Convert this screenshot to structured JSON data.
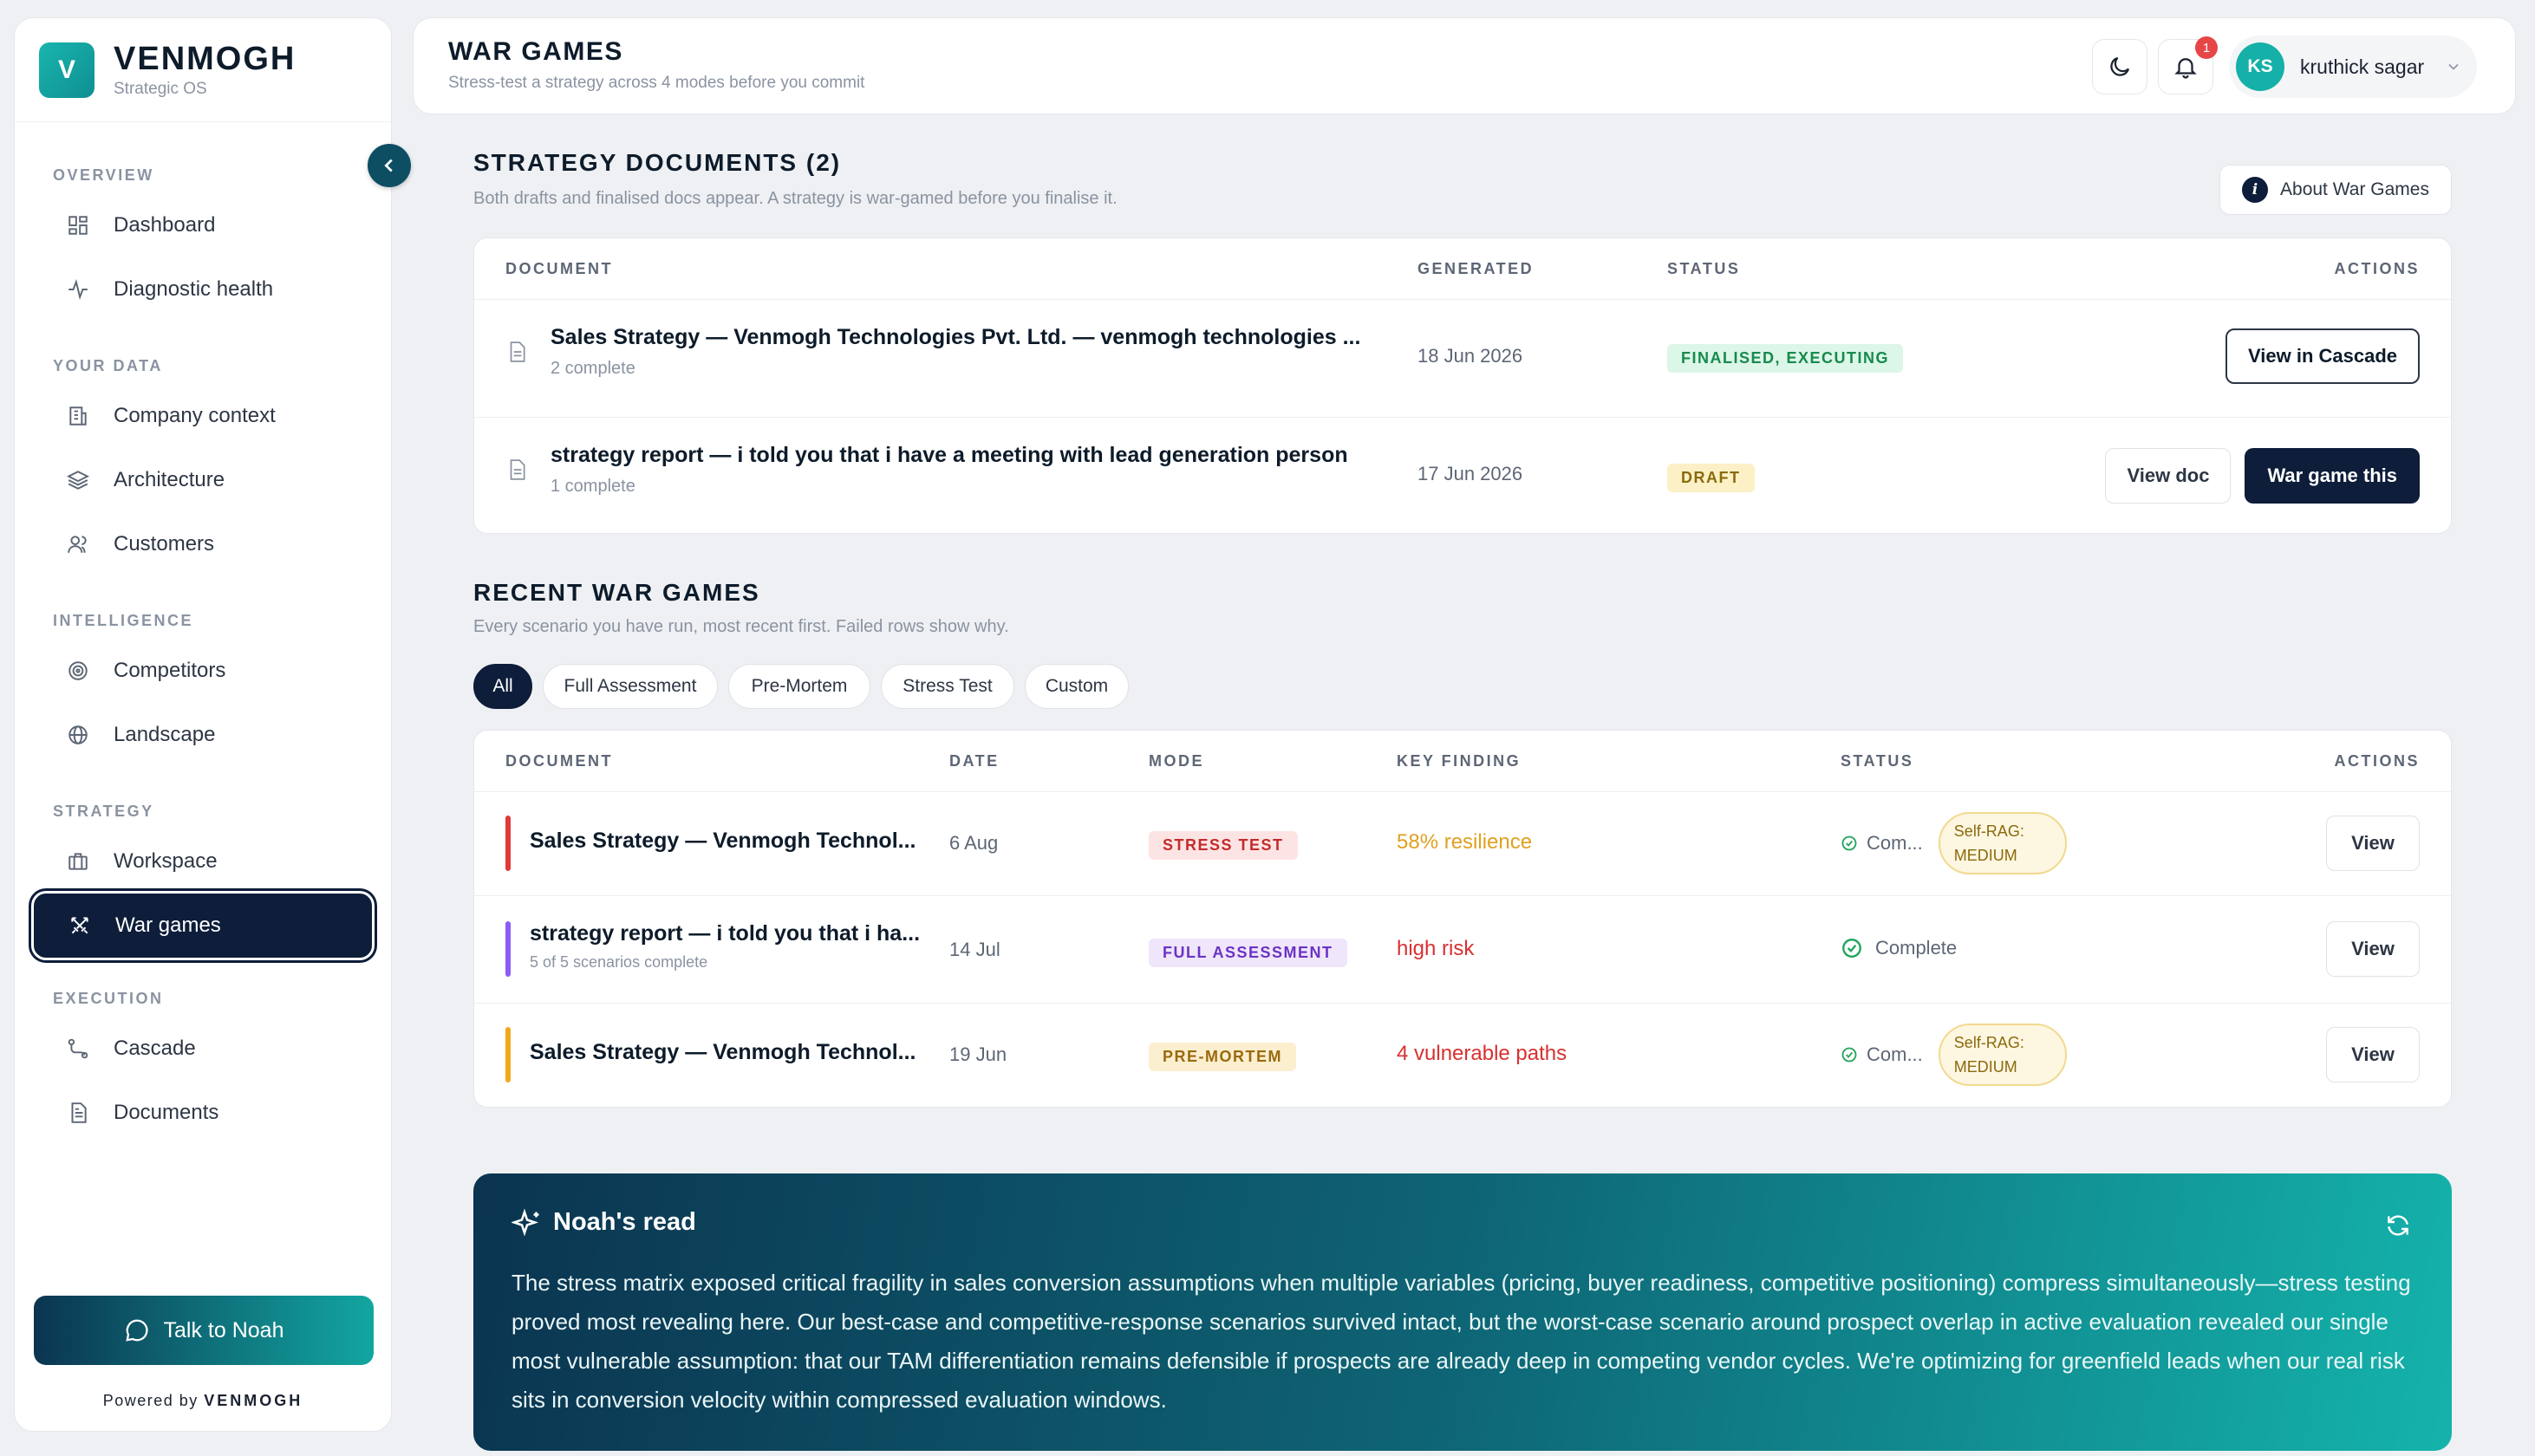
{
  "brand": {
    "logo_letter": "V",
    "name": "VENMOGH",
    "subtitle": "Strategic OS"
  },
  "sidebar": {
    "sections": {
      "overview": "OVERVIEW",
      "your_data": "YOUR DATA",
      "intelligence": "INTELLIGENCE",
      "strategy": "STRATEGY",
      "execution": "EXECUTION"
    },
    "items": {
      "dashboard": "Dashboard",
      "diagnostic": "Diagnostic health",
      "company": "Company context",
      "architecture": "Architecture",
      "customers": "Customers",
      "competitors": "Competitors",
      "landscape": "Landscape",
      "workspace": "Workspace",
      "war_games": "War games",
      "cascade": "Cascade",
      "documents": "Documents"
    },
    "talk_button": "Talk to Noah",
    "powered_prefix": "Powered by",
    "powered_brand": "VENMOGH"
  },
  "header": {
    "title": "WAR GAMES",
    "subtitle": "Stress-test a strategy across 4 modes before you commit",
    "notification_count": "1",
    "user_initials": "KS",
    "user_name": "kruthick sagar"
  },
  "strategy_docs": {
    "title": "STRATEGY DOCUMENTS (2)",
    "subtitle": "Both drafts and finalised docs appear. A strategy is war-gamed before you finalise it.",
    "about_button": "About War Games",
    "columns": {
      "document": "DOCUMENT",
      "generated": "GENERATED",
      "status": "STATUS",
      "actions": "ACTIONS"
    },
    "rows": [
      {
        "title": "Sales Strategy — Venmogh Technologies Pvt. Ltd. — venmogh technologies ...",
        "meta": "2 complete",
        "date": "18 Jun 2026",
        "status": "FINALISED, EXECUTING",
        "action1": "View in Cascade"
      },
      {
        "title": "strategy report — i told you that i have a meeting with lead generation person",
        "meta": "1 complete",
        "date": "17 Jun 2026",
        "status": "DRAFT",
        "action1": "View doc",
        "action2": "War game this"
      }
    ]
  },
  "recent": {
    "title": "RECENT WAR GAMES",
    "subtitle": "Every scenario you have run, most recent first. Failed rows show why.",
    "filters": [
      "All",
      "Full Assessment",
      "Pre-Mortem",
      "Stress Test",
      "Custom"
    ],
    "columns": {
      "document": "DOCUMENT",
      "date": "DATE",
      "mode": "MODE",
      "finding": "KEY FINDING",
      "status": "STATUS",
      "actions": "ACTIONS"
    },
    "rows": [
      {
        "title": "Sales Strategy — Venmogh Technol...",
        "meta": "",
        "date": "6 Aug",
        "mode": "STRESS TEST",
        "finding": "58% resilience",
        "status": "Com...",
        "rag_line1": "Self-RAG:",
        "rag_line2": "MEDIUM",
        "action": "View",
        "accent": "#e03a3a",
        "finding_color": "#e0a020"
      },
      {
        "title": "strategy report — i told you that i ha...",
        "meta": "5 of 5 scenarios complete",
        "date": "14 Jul",
        "mode": "FULL ASSESSMENT",
        "finding": "high risk",
        "status": "Complete",
        "action": "View",
        "accent": "#8b5cf6",
        "finding_color": "#d83030"
      },
      {
        "title": "Sales Strategy — Venmogh Technol...",
        "meta": "",
        "date": "19 Jun",
        "mode": "PRE-MORTEM",
        "finding": "4 vulnerable paths",
        "status": "Com...",
        "rag_line1": "Self-RAG:",
        "rag_line2": "MEDIUM",
        "action": "View",
        "accent": "#f0a81c",
        "finding_color": "#d83030"
      }
    ]
  },
  "noah": {
    "title": "Noah's read",
    "body": "The stress matrix exposed critical fragility in sales conversion assumptions when multiple variables (pricing, buyer readiness, competitive positioning) compress simultaneously—stress testing proved most revealing here. Our best-case and competitive-response scenarios survived intact, but the worst-case scenario around prospect overlap in active evaluation revealed our single most vulnerable assumption: that our TAM differentiation remains defensible if prospects are already deep in competing vendor cycles. We're optimizing for greenfield leads when our real risk sits in conversion velocity within compressed evaluation windows."
  }
}
